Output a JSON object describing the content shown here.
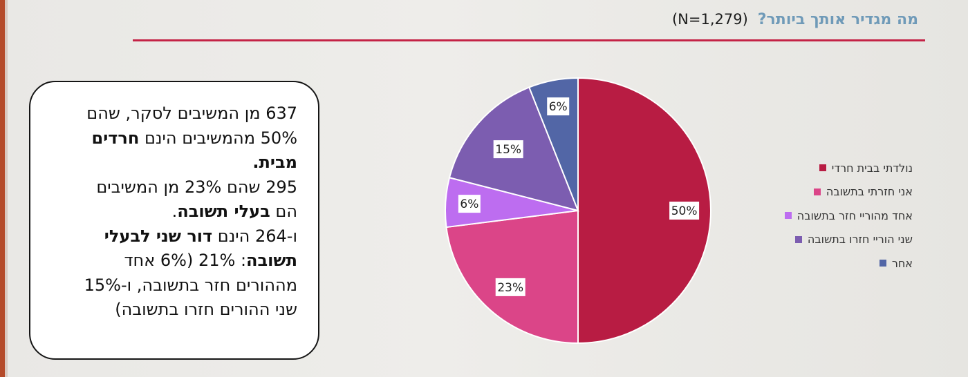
{
  "header": {
    "title": "מה מגדיר אותך ביותר?",
    "sample_size": "(N=1,279)"
  },
  "note": {
    "line1": "637 מן המשיבים לסקר, שהם",
    "line2_pre": "50% מהמשיבים הינם ",
    "line2_bold": "חרדים",
    "line3_bold": "מבית.",
    "line4": "295 שהם 23% מן המשיבים",
    "line5_pre": "הם ",
    "line5_bold": "בעלי תשובה",
    "line5_post": ".",
    "line6_pre": "ו-264 הינם ",
    "line6_bold": "דור שני לבעלי",
    "line7_bold": "תשובה",
    "line7_post": ": 21% (6% אחד",
    "line8": "מההורים חזר בתשובה, ו-15%",
    "line9": "שני ההורים חזרו בתשובה)"
  },
  "chart_data": {
    "type": "pie",
    "title": "מה מגדיר אותך ביותר? (N=1,279)",
    "legend_position": "right",
    "slices": [
      {
        "label": "נולדתי בבית חרדי",
        "value": 50,
        "display": "50%",
        "color": "#b81c43"
      },
      {
        "label": "אני חזרתי בתשובה",
        "value": 23,
        "display": "23%",
        "color": "#db4588"
      },
      {
        "label": "אחד מהוריי חזר בתשובה",
        "value": 6,
        "display": "6%",
        "color": "#bd6df0"
      },
      {
        "label": "שני הוריי חזרו בתשובה",
        "value": 15,
        "display": "15%",
        "color": "#7c5db0"
      },
      {
        "label": "אחר",
        "value": 6,
        "display": "6%",
        "color": "#5266a6"
      }
    ]
  }
}
